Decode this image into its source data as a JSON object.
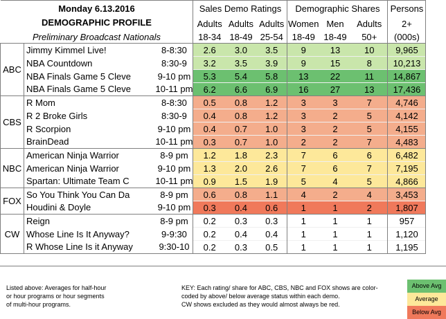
{
  "header": {
    "title": "Monday 6.13.2016",
    "subtitle": "DEMOGRAPHIC PROFILE",
    "note": "Preliminary Broadcast Nationals",
    "group_sales": "Sales Demo Ratings",
    "group_shares": "Demographic Shares",
    "group_persons": "Persons",
    "columns": [
      {
        "top": "Adults",
        "bottom": "18-34"
      },
      {
        "top": "Adults",
        "bottom": "18-49"
      },
      {
        "top": "Adults",
        "bottom": "25-54"
      },
      {
        "top": "Women",
        "bottom": "18-49"
      },
      {
        "top": "Men",
        "bottom": "18-49"
      },
      {
        "top": "Adults",
        "bottom": "50+"
      },
      {
        "top": "2+",
        "bottom": "(000s)"
      }
    ]
  },
  "colors": {
    "above": "#6cc070",
    "average": "#fde89a",
    "below": "#f0795b",
    "aboveLight": "#c9e6ab",
    "belowLight": "#f4ad8c",
    "none": "#ffffff"
  },
  "networks": [
    {
      "name": "ABC",
      "rows": [
        {
          "show": "Jimmy Kimmel Live!",
          "time": "8-8:30",
          "cells": [
            "2.6",
            "3.0",
            "3.5",
            "9",
            "13",
            "10",
            "9,965"
          ],
          "colors": [
            "aboveLight",
            "aboveLight",
            "aboveLight",
            "aboveLight",
            "aboveLight",
            "aboveLight",
            "aboveLight"
          ]
        },
        {
          "show": "NBA Countdown",
          "time": "8:30-9",
          "cells": [
            "3.2",
            "3.5",
            "3.9",
            "9",
            "15",
            "8",
            "10,213"
          ],
          "colors": [
            "aboveLight",
            "aboveLight",
            "aboveLight",
            "aboveLight",
            "aboveLight",
            "aboveLight",
            "aboveLight"
          ]
        },
        {
          "show": "NBA Finals Game 5 Cleve",
          "time": "9-10 pm",
          "cells": [
            "5.3",
            "5.4",
            "5.8",
            "13",
            "22",
            "11",
            "14,867"
          ],
          "colors": [
            "above",
            "above",
            "above",
            "above",
            "above",
            "above",
            "above"
          ]
        },
        {
          "show": "NBA Finals Game 5 Cleve",
          "time": "10-11 pm",
          "cells": [
            "6.2",
            "6.6",
            "6.9",
            "16",
            "27",
            "13",
            "17,436"
          ],
          "colors": [
            "above",
            "above",
            "above",
            "above",
            "above",
            "above",
            "above"
          ]
        }
      ]
    },
    {
      "name": "CBS",
      "rows": [
        {
          "show": "R Mom",
          "time": "8-8:30",
          "cells": [
            "0.5",
            "0.8",
            "1.2",
            "3",
            "3",
            "7",
            "4,746"
          ],
          "colors": [
            "belowLight",
            "belowLight",
            "belowLight",
            "belowLight",
            "belowLight",
            "belowLight",
            "belowLight"
          ]
        },
        {
          "show": "R 2 Broke Girls",
          "time": "8:30-9",
          "cells": [
            "0.4",
            "0.8",
            "1.2",
            "3",
            "2",
            "5",
            "4,142"
          ],
          "colors": [
            "belowLight",
            "belowLight",
            "belowLight",
            "belowLight",
            "belowLight",
            "belowLight",
            "belowLight"
          ]
        },
        {
          "show": "R Scorpion",
          "time": "9-10 pm",
          "cells": [
            "0.4",
            "0.7",
            "1.0",
            "3",
            "2",
            "5",
            "4,155"
          ],
          "colors": [
            "belowLight",
            "belowLight",
            "belowLight",
            "belowLight",
            "belowLight",
            "belowLight",
            "belowLight"
          ]
        },
        {
          "show": "BrainDead",
          "time": "10-11 pm",
          "cells": [
            "0.3",
            "0.7",
            "1.0",
            "2",
            "2",
            "7",
            "4,483"
          ],
          "colors": [
            "belowLight",
            "belowLight",
            "belowLight",
            "belowLight",
            "belowLight",
            "belowLight",
            "belowLight"
          ]
        }
      ]
    },
    {
      "name": "NBC",
      "rows": [
        {
          "show": "American Ninja Warrior",
          "time": "8-9 pm",
          "cells": [
            "1.2",
            "1.8",
            "2.3",
            "7",
            "6",
            "6",
            "6,482"
          ],
          "colors": [
            "average",
            "average",
            "average",
            "average",
            "average",
            "average",
            "average"
          ]
        },
        {
          "show": "American Ninja Warrior",
          "time": "9-10 pm",
          "cells": [
            "1.3",
            "2.0",
            "2.6",
            "7",
            "6",
            "7",
            "7,195"
          ],
          "colors": [
            "average",
            "average",
            "average",
            "average",
            "average",
            "average",
            "average"
          ]
        },
        {
          "show": "Spartan: Ultimate Team C",
          "time": "10-11 pm",
          "cells": [
            "0.9",
            "1.5",
            "1.9",
            "5",
            "4",
            "5",
            "4,866"
          ],
          "colors": [
            "average",
            "average",
            "average",
            "average",
            "average",
            "average",
            "average"
          ]
        }
      ]
    },
    {
      "name": "FOX",
      "rows": [
        {
          "show": "So You Think You Can Da",
          "time": "8-9 pm",
          "cells": [
            "0.6",
            "0.8",
            "1.1",
            "4",
            "2",
            "4",
            "3,453"
          ],
          "colors": [
            "belowLight",
            "belowLight",
            "belowLight",
            "belowLight",
            "belowLight",
            "belowLight",
            "belowLight"
          ]
        },
        {
          "show": "Houdini & Doyle",
          "time": "9-10 pm",
          "cells": [
            "0.3",
            "0.4",
            "0.6",
            "1",
            "1",
            "2",
            "1,807"
          ],
          "colors": [
            "below",
            "below",
            "below",
            "below",
            "below",
            "below",
            "below"
          ]
        }
      ]
    },
    {
      "name": "CW",
      "rows": [
        {
          "show": "Reign",
          "time": "8-9 pm",
          "cells": [
            "0.2",
            "0.3",
            "0.3",
            "1",
            "1",
            "1",
            "957"
          ],
          "colors": [
            "none",
            "none",
            "none",
            "none",
            "none",
            "none",
            "none"
          ]
        },
        {
          "show": "Whose Line Is It Anyway?",
          "time": "9-9:30",
          "cells": [
            "0.2",
            "0.4",
            "0.4",
            "1",
            "1",
            "1",
            "1,120"
          ],
          "colors": [
            "none",
            "none",
            "none",
            "none",
            "none",
            "none",
            "none"
          ]
        },
        {
          "show": "R Whose Line Is it Anyway",
          "time": "9:30-10",
          "cells": [
            "0.2",
            "0.3",
            "0.5",
            "1",
            "1",
            "1",
            "1,195"
          ],
          "colors": [
            "none",
            "none",
            "none",
            "none",
            "none",
            "none",
            "none"
          ]
        }
      ]
    }
  ],
  "footer": {
    "left_lines": [
      "Listed above: Averages for half-hour",
      "or hour programs or hour segments",
      "of multi-hour programs."
    ],
    "key_lines": [
      "KEY: Each rating/ share for ABC, CBS, NBC and FOX shows are color-",
      "coded by above/ below average status within each demo.",
      "CW shows excluded as they would almost always be red."
    ],
    "legend": [
      "Above Avg",
      "Average",
      "Below Avg"
    ]
  }
}
